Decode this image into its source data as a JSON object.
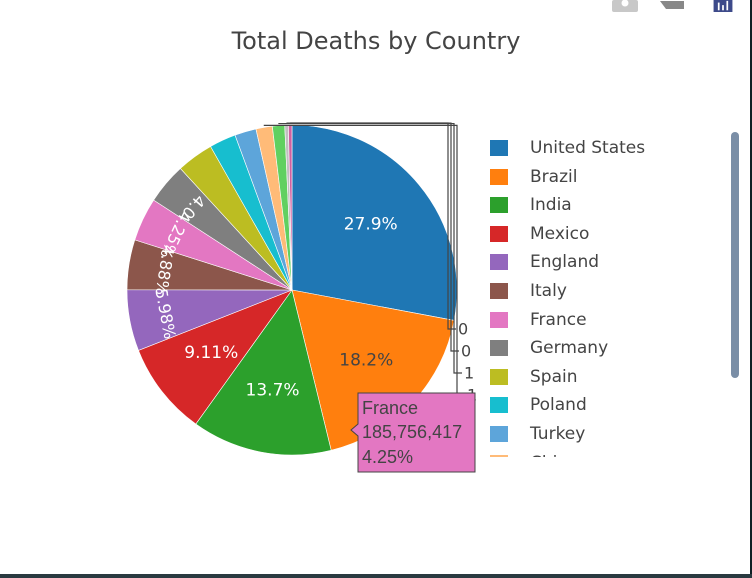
{
  "chart_data": {
    "type": "pie",
    "title": "Total Deaths by Country",
    "slices": [
      {
        "label": "United States",
        "percent": 27.9,
        "text": "27.9%",
        "color": "#1f77b4"
      },
      {
        "label": "Brazil",
        "percent": 18.2,
        "text": "18.2%",
        "color": "#ff7f0e"
      },
      {
        "label": "India",
        "percent": 13.7,
        "text": "13.7%",
        "color": "#2ca02c"
      },
      {
        "label": "Mexico",
        "percent": 9.11,
        "text": "9.11%",
        "color": "#d62728"
      },
      {
        "label": "England",
        "percent": 5.98,
        "text": "5.98%",
        "color": "#9467bd"
      },
      {
        "label": "Italy",
        "percent": 4.88,
        "text": "4.88%",
        "color": "#8c564b"
      },
      {
        "label": "France",
        "percent": 4.25,
        "text": "4.25%",
        "color": "#e377c2"
      },
      {
        "label": "Germany",
        "percent": 4.0,
        "text": "4.0",
        "color": "#7f7f7f"
      },
      {
        "label": "Spain",
        "percent": 3.6,
        "text": "",
        "color": "#bcbd22"
      },
      {
        "label": "Poland",
        "percent": 2.6,
        "text": "",
        "color": "#17becf"
      },
      {
        "label": "Turkey",
        "percent": 2.1,
        "text": "",
        "color": "#5da5da"
      },
      {
        "label": "",
        "percent": 1.6,
        "text": "",
        "color": "#ffbb78"
      },
      {
        "label": "",
        "percent": 1.2,
        "text": "",
        "color": "#60d060"
      },
      {
        "label": "",
        "percent": 0.35,
        "text": "",
        "color": "#c0c0c0"
      },
      {
        "label": "",
        "percent": 0.35,
        "text": "",
        "color": "#d060a0"
      }
    ],
    "outside_labels": [
      "0",
      "0",
      "1",
      "1"
    ],
    "legend_entries": [
      "United States",
      "Brazil",
      "India",
      "Mexico",
      "England",
      "Italy",
      "France",
      "Germany",
      "Spain",
      "Poland",
      "Turkey",
      "Chi"
    ],
    "legend_colors": [
      "#1f77b4",
      "#ff7f0e",
      "#2ca02c",
      "#d62728",
      "#9467bd",
      "#8c564b",
      "#e377c2",
      "#7f7f7f",
      "#bcbd22",
      "#17becf",
      "#5da5da",
      "#ffbb78"
    ],
    "legend_placement": "right",
    "tooltip": {
      "label": "France",
      "value": "185,756,417",
      "percent": "4.25%",
      "color": "#e377c2"
    }
  },
  "modebar": {
    "icons": [
      "camera-icon",
      "pan-icon",
      "plotly-logo-icon"
    ]
  }
}
